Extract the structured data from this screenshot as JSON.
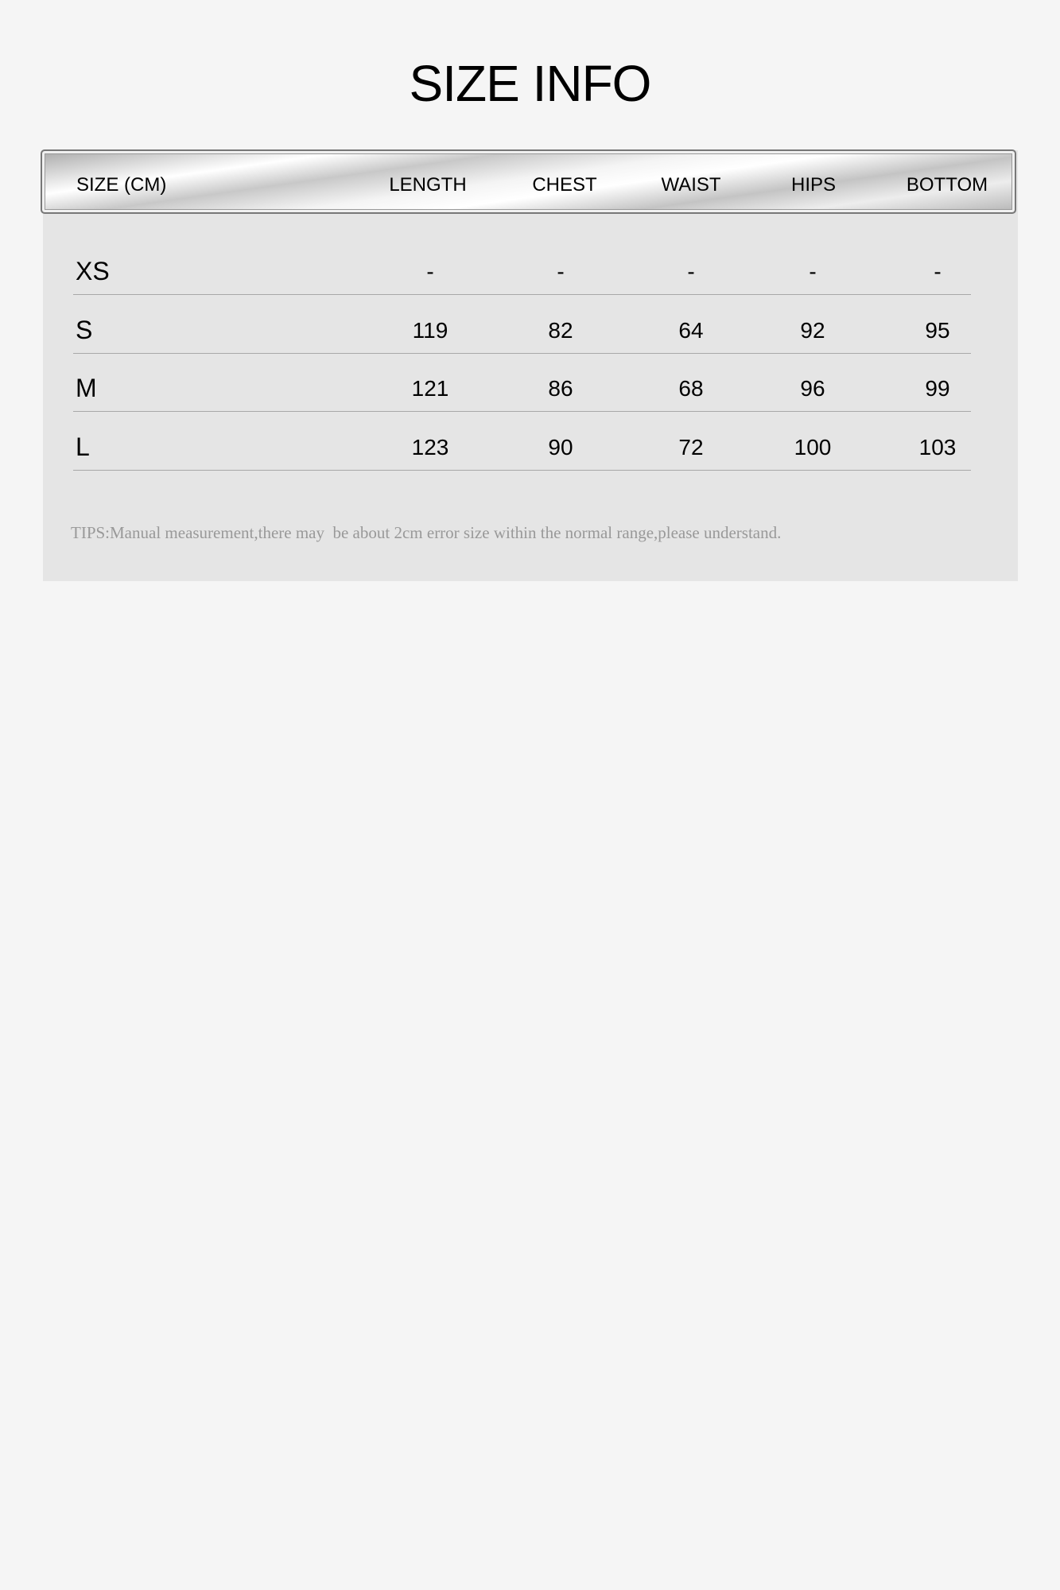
{
  "title": "SIZE INFO",
  "table": {
    "headers": [
      "SIZE (CM)",
      "LENGTH",
      "CHEST",
      "WAIST",
      "HIPS",
      "BOTTOM"
    ],
    "rows": [
      {
        "size": "XS",
        "values": [
          "-",
          "-",
          "-",
          "-",
          "-"
        ]
      },
      {
        "size": "S",
        "values": [
          "119",
          "82",
          "64",
          "92",
          "95"
        ]
      },
      {
        "size": "M",
        "values": [
          "121",
          "86",
          "68",
          "96",
          "99"
        ]
      },
      {
        "size": "L",
        "values": [
          "123",
          "90",
          "72",
          "100",
          "103"
        ]
      }
    ]
  },
  "tips": "TIPS:Manual measurement,there may  be about 2cm error size within the normal range,please understand."
}
